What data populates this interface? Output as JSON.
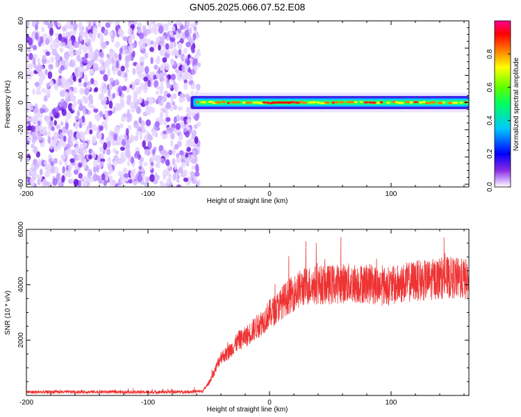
{
  "figure": {
    "title": "GN05.2025.066.07.52.E08"
  },
  "chart_data": [
    {
      "type": "heatmap",
      "title": "GN05.2025.066.07.52.E08",
      "xlabel": "Height of straight line (km)",
      "ylabel": "Frequency (Hz)",
      "xlim": [
        -200,
        164
      ],
      "ylim": [
        -62,
        60
      ],
      "x_ticks": [
        -200,
        -100,
        0,
        100
      ],
      "y_ticks": [
        60,
        40,
        20,
        0,
        -20,
        -40,
        -60
      ],
      "noise_region_x": [
        -200,
        -58
      ],
      "signal_band": {
        "x_start": -65,
        "x_end": 164,
        "center_frequency": 0,
        "half_width": 3
      },
      "colorbar": {
        "label": "Normalized spectral amplitude",
        "range": [
          0.0,
          1.0
        ],
        "ticks": [
          0.0,
          0.2,
          0.4,
          0.6,
          0.8
        ],
        "tick_labels": [
          "0.0",
          "0.2",
          "0.4",
          "0.6",
          "0.8"
        ],
        "colors": [
          "#ffffff",
          "#c080ff",
          "#6a1bdb",
          "#0000ff",
          "#00c0ff",
          "#00ff80",
          "#80ff00",
          "#ffff00",
          "#ff8000",
          "#ff0000",
          "#ff0080"
        ]
      },
      "grid": false
    },
    {
      "type": "line",
      "xlabel": "Height of straight line (km)",
      "ylabel": "SNR (10 * v/v)",
      "xlim": [
        -200,
        164
      ],
      "ylim": [
        0,
        6000
      ],
      "x_ticks": [
        -200,
        -100,
        0,
        100
      ],
      "y_ticks": [
        2000,
        4000,
        6000
      ],
      "grid": false,
      "series": [
        {
          "color": "#ee3333",
          "x": [
            -200,
            -150,
            -100,
            -70,
            -55,
            -50,
            -45,
            -40,
            -35,
            -30,
            -25,
            -20,
            -15,
            -10,
            -5,
            0,
            5,
            10,
            15,
            20,
            25,
            30,
            40,
            50,
            60,
            70,
            80,
            90,
            100,
            110,
            120,
            130,
            140,
            150,
            160,
            164
          ],
          "values": [
            120,
            130,
            120,
            130,
            150,
            450,
            900,
            1400,
            1500,
            1750,
            2000,
            2100,
            2300,
            2500,
            2700,
            2950,
            3100,
            3350,
            3550,
            3700,
            3850,
            3950,
            4000,
            4000,
            4050,
            4050,
            4050,
            3950,
            3950,
            4050,
            4150,
            4150,
            4250,
            4250,
            4200,
            4150
          ]
        }
      ]
    }
  ]
}
